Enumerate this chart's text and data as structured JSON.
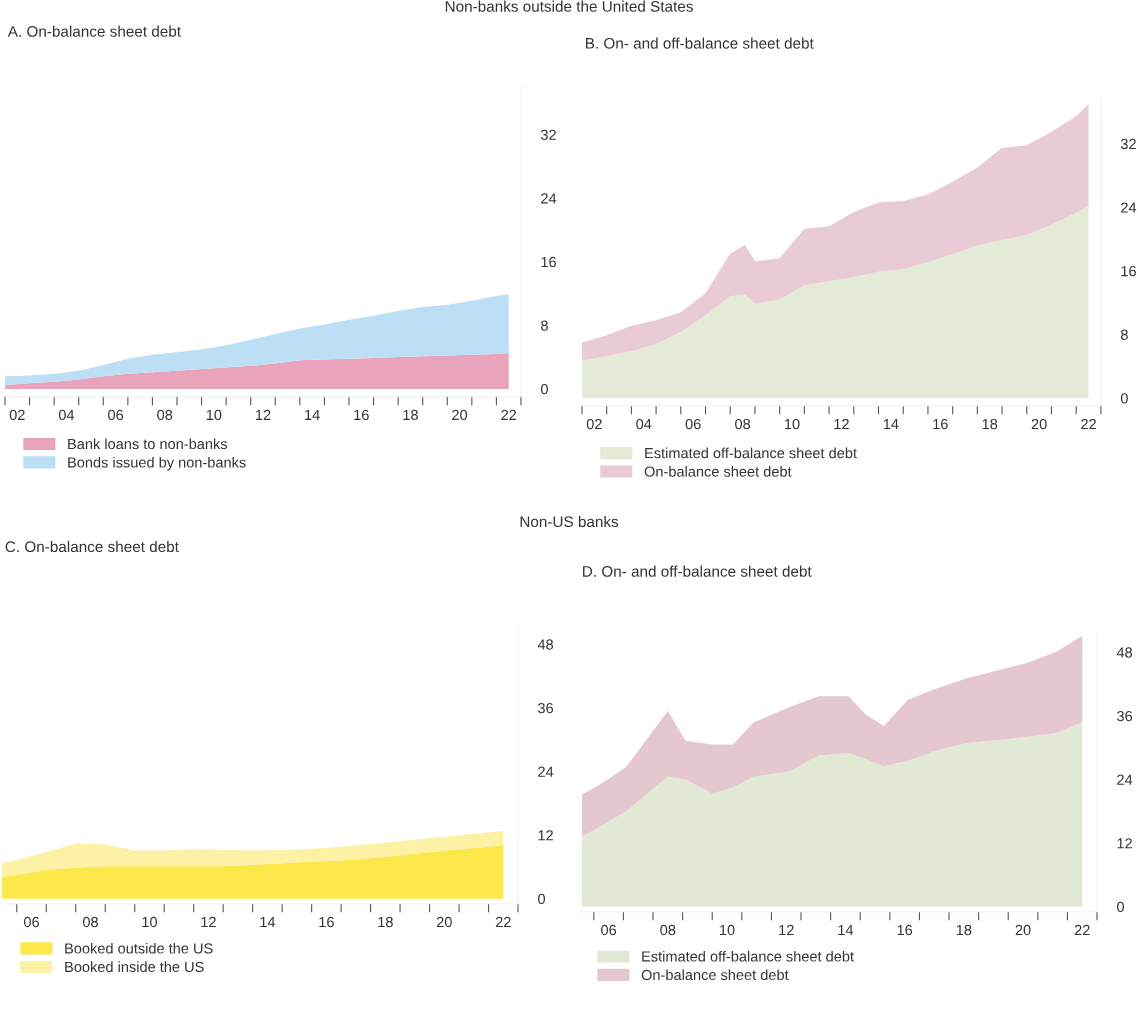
{
  "chart_data": [
    {
      "type": "area",
      "stacked": true,
      "title": "A. On-balance sheet debt",
      "annotations": [
        "Non-banks outside the United States"
      ],
      "x": [
        1.5,
        2.5,
        3.5,
        4.5,
        5.5,
        6.5,
        7.5,
        8.5,
        9.5,
        10.5,
        11.5,
        12.5,
        13.5,
        14.5,
        15.5,
        16.5,
        17.5,
        18.5,
        19.5,
        20.5,
        21.5,
        22
      ],
      "series": [
        {
          "name": "Bank loans to non-banks",
          "color": "#e9a3bb",
          "values": [
            0.5,
            0.7,
            0.9,
            1.2,
            1.6,
            1.9,
            2.1,
            2.3,
            2.5,
            2.7,
            2.9,
            3.2,
            3.6,
            3.7,
            3.8,
            3.9,
            4.0,
            4.1,
            4.2,
            4.3,
            4.4,
            4.5
          ]
        },
        {
          "name": "Bonds issued by non-banks",
          "color": "#bddff5",
          "values": [
            1.1,
            1.0,
            1.0,
            1.1,
            1.4,
            1.9,
            2.2,
            2.3,
            2.5,
            2.8,
            3.3,
            3.7,
            4.0,
            4.4,
            4.9,
            5.3,
            5.8,
            6.2,
            6.4,
            6.8,
            7.3,
            7.4
          ]
        }
      ],
      "xlim": [
        1.5,
        22.5
      ],
      "ylim": [
        -1,
        38
      ],
      "yticks": [
        0,
        8,
        16,
        24,
        32
      ],
      "xticks": [
        {
          "value": 1.5,
          "label": null
        },
        {
          "value": 2.5,
          "label": null
        },
        {
          "value": 3.5,
          "label": null
        },
        {
          "value": 4.5,
          "label": null
        },
        {
          "value": 5.5,
          "label": null
        },
        {
          "value": 6.5,
          "label": null
        },
        {
          "value": 7.5,
          "label": null
        },
        {
          "value": 8.5,
          "label": null
        },
        {
          "value": 9.5,
          "label": null
        },
        {
          "value": 10.5,
          "label": null
        },
        {
          "value": 11.5,
          "label": null
        },
        {
          "value": 12.5,
          "label": null
        },
        {
          "value": 13.5,
          "label": null
        },
        {
          "value": 14.5,
          "label": null
        },
        {
          "value": 15.5,
          "label": null
        },
        {
          "value": 16.5,
          "label": null
        },
        {
          "value": 17.5,
          "label": null
        },
        {
          "value": 18.5,
          "label": null
        },
        {
          "value": 19.5,
          "label": null
        },
        {
          "value": 20.5,
          "label": null
        },
        {
          "value": 21.5,
          "label": null
        },
        {
          "value": 22.5,
          "label": null
        },
        {
          "value": 2,
          "label": "02"
        },
        {
          "value": 4,
          "label": "04"
        },
        {
          "value": 6,
          "label": "06"
        },
        {
          "value": 8,
          "label": "08"
        },
        10,
        12,
        14,
        16,
        18,
        20,
        22
      ],
      "legend": "bottom"
    },
    {
      "type": "area",
      "stacked": true,
      "title": "B. On- and off-balance sheet debt",
      "x": [
        1.5,
        2.5,
        3.5,
        4.5,
        5.5,
        6.5,
        7.5,
        8.1,
        8.5,
        9.5,
        10.5,
        11.5,
        12.5,
        13.5,
        14.5,
        15.5,
        16.5,
        17.5,
        18.5,
        19.5,
        20.5,
        21.5,
        22
      ],
      "series": [
        {
          "name": "Estimated off-balance sheet debt",
          "color": "#e3ebd6",
          "values": [
            4.7,
            5.3,
            5.9,
            6.8,
            8.3,
            10.4,
            12.8,
            13.0,
            11.9,
            12.4,
            14.2,
            14.7,
            15.2,
            15.9,
            16.2,
            17.1,
            18.1,
            19.2,
            19.9,
            20.5,
            21.8,
            23.3,
            24.2
          ]
        },
        {
          "name": "On-balance sheet debt",
          "color": "#e9cbd6",
          "values": [
            2.3,
            2.6,
            3.2,
            3.0,
            2.5,
            2.8,
            5.4,
            6.3,
            5.3,
            5.2,
            7.1,
            6.9,
            8.2,
            8.7,
            8.6,
            8.5,
            9.1,
            9.8,
            11.6,
            11.3,
            11.7,
            12.2,
            12.8
          ]
        }
      ],
      "xlim": [
        1.5,
        22.5
      ],
      "ylim": [
        -1,
        38
      ],
      "yticks": [
        0,
        8,
        16,
        24,
        32
      ],
      "xticks": [
        {
          "value": 1.5,
          "label": null
        },
        {
          "value": 2.5,
          "label": null
        },
        {
          "value": 3.5,
          "label": null
        },
        {
          "value": 4.5,
          "label": null
        },
        {
          "value": 5.5,
          "label": null
        },
        {
          "value": 6.5,
          "label": null
        },
        {
          "value": 7.5,
          "label": null
        },
        {
          "value": 8.5,
          "label": null
        },
        {
          "value": 9.5,
          "label": null
        },
        {
          "value": 10.5,
          "label": null
        },
        {
          "value": 11.5,
          "label": null
        },
        {
          "value": 12.5,
          "label": null
        },
        {
          "value": 13.5,
          "label": null
        },
        {
          "value": 14.5,
          "label": null
        },
        {
          "value": 15.5,
          "label": null
        },
        {
          "value": 16.5,
          "label": null
        },
        {
          "value": 17.5,
          "label": null
        },
        {
          "value": 18.5,
          "label": null
        },
        {
          "value": 19.5,
          "label": null
        },
        {
          "value": 20.5,
          "label": null
        },
        {
          "value": 21.5,
          "label": null
        },
        {
          "value": 22.5,
          "label": null
        },
        {
          "value": 2,
          "label": "02"
        },
        {
          "value": 4,
          "label": "04"
        },
        {
          "value": 6,
          "label": "06"
        },
        {
          "value": 8,
          "label": "08"
        },
        10,
        12,
        14,
        16,
        18,
        20,
        22
      ],
      "legend": "bottom"
    },
    {
      "type": "area",
      "stacked": true,
      "title": "C. On-balance sheet debt",
      "annotations": [
        "Non-US banks"
      ],
      "x": [
        5,
        5.5,
        6.5,
        7.5,
        8.5,
        9.5,
        10.5,
        11.5,
        12.5,
        13.5,
        14.5,
        15.5,
        16.5,
        17.5,
        18.5,
        19.5,
        20.5,
        21.5,
        22
      ],
      "series": [
        {
          "name": "Booked outside the US",
          "color": "#fde84c",
          "values": [
            4.0,
            4.5,
            5.4,
            5.9,
            6.1,
            6.1,
            6.1,
            6.1,
            6.1,
            6.4,
            6.7,
            7.0,
            7.2,
            7.6,
            8.2,
            8.8,
            9.3,
            9.8,
            10.1
          ]
        },
        {
          "name": "Booked inside the US",
          "color": "#fdf1a6",
          "values": [
            2.7,
            2.8,
            3.4,
            4.5,
            4.1,
            3.0,
            3.0,
            3.2,
            3.1,
            2.7,
            2.5,
            2.4,
            2.6,
            2.7,
            2.7,
            2.6,
            2.7,
            2.7,
            2.7
          ]
        }
      ],
      "xlim": [
        5,
        22.5
      ],
      "ylim": [
        -1,
        52
      ],
      "yticks": [
        0,
        12,
        24,
        36,
        48
      ],
      "xticks": [
        {
          "value": 5.5,
          "label": null
        },
        {
          "value": 6.5,
          "label": null
        },
        {
          "value": 7.5,
          "label": null
        },
        {
          "value": 8.5,
          "label": null
        },
        {
          "value": 9.5,
          "label": null
        },
        {
          "value": 10.5,
          "label": null
        },
        {
          "value": 11.5,
          "label": null
        },
        {
          "value": 12.5,
          "label": null
        },
        {
          "value": 13.5,
          "label": null
        },
        {
          "value": 14.5,
          "label": null
        },
        {
          "value": 15.5,
          "label": null
        },
        {
          "value": 16.5,
          "label": null
        },
        {
          "value": 17.5,
          "label": null
        },
        {
          "value": 18.5,
          "label": null
        },
        {
          "value": 19.5,
          "label": null
        },
        {
          "value": 20.5,
          "label": null
        },
        {
          "value": 21.5,
          "label": null
        },
        {
          "value": 22.5,
          "label": null
        },
        {
          "value": 6,
          "label": "06"
        },
        {
          "value": 8,
          "label": "08"
        },
        10,
        12,
        14,
        16,
        18,
        20,
        22
      ],
      "legend": "bottom"
    },
    {
      "type": "area",
      "stacked": true,
      "title": "D. On- and off-balance sheet debt",
      "x": [
        5.1,
        5.7,
        6.6,
        8.0,
        8.6,
        9.5,
        10.2,
        10.9,
        12.1,
        13.1,
        14.1,
        14.7,
        15.3,
        16.1,
        17.0,
        18.1,
        19.1,
        20.1,
        21.1,
        22
      ],
      "series": [
        {
          "name": "Estimated off-balance sheet debt",
          "color": "#e1e9d5",
          "values": [
            13.2,
            15.1,
            18.0,
            24.5,
            24.0,
            21.3,
            22.5,
            24.5,
            25.5,
            28.5,
            29.0,
            27.8,
            26.5,
            27.5,
            29.3,
            30.9,
            31.4,
            32.0,
            32.7,
            34.8
          ]
        },
        {
          "name": "On-balance sheet debt",
          "color": "#e5c7cf",
          "values": [
            8.0,
            7.9,
            8.4,
            12.4,
            7.3,
            9.3,
            8.1,
            10.3,
            12.1,
            11.2,
            10.7,
            8.4,
            7.6,
            11.5,
            11.7,
            12.2,
            13.1,
            13.9,
            15.3,
            16.3
          ]
        }
      ],
      "xlim": [
        5,
        22.5
      ],
      "ylim": [
        -1,
        52
      ],
      "yticks": [
        0,
        12,
        24,
        36,
        48
      ],
      "xticks": [
        {
          "value": 5.5,
          "label": null
        },
        {
          "value": 6.5,
          "label": null
        },
        {
          "value": 7.5,
          "label": null
        },
        {
          "value": 8.5,
          "label": null
        },
        {
          "value": 9.5,
          "label": null
        },
        {
          "value": 10.5,
          "label": null
        },
        {
          "value": 11.5,
          "label": null
        },
        {
          "value": 12.5,
          "label": null
        },
        {
          "value": 13.5,
          "label": null
        },
        {
          "value": 14.5,
          "label": null
        },
        {
          "value": 15.5,
          "label": null
        },
        {
          "value": 16.5,
          "label": null
        },
        {
          "value": 17.5,
          "label": null
        },
        {
          "value": 18.5,
          "label": null
        },
        {
          "value": 19.5,
          "label": null
        },
        {
          "value": 20.5,
          "label": null
        },
        {
          "value": 21.5,
          "label": null
        },
        {
          "value": 22.5,
          "label": null
        },
        {
          "value": 6,
          "label": "06"
        },
        {
          "value": 8,
          "label": "08"
        },
        10,
        12,
        14,
        16,
        18,
        20,
        22
      ],
      "legend": "bottom"
    }
  ]
}
